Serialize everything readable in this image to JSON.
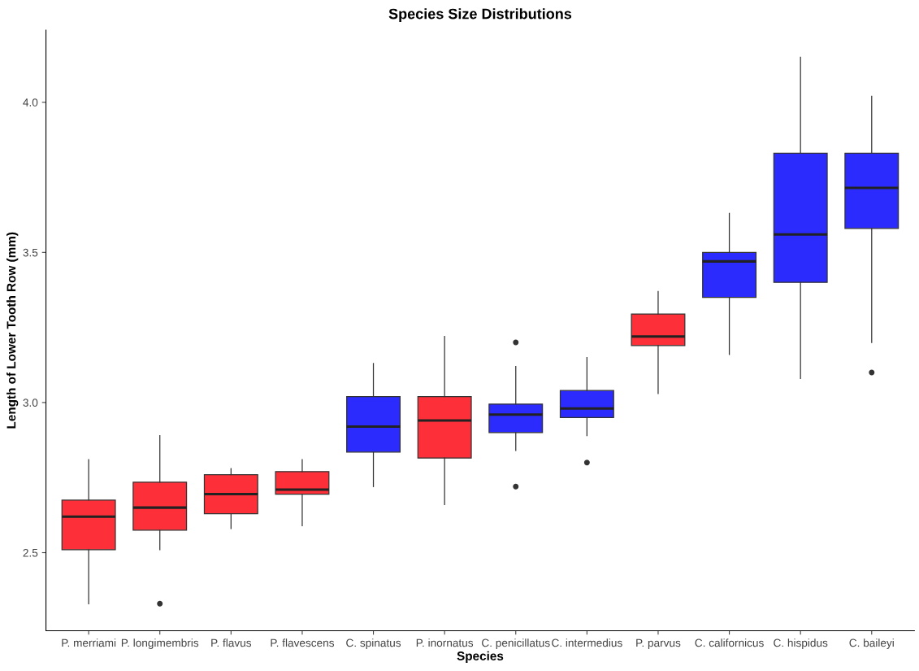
{
  "chart_data": {
    "type": "box",
    "title": "Species Size Distributions",
    "xlabel": "Species",
    "ylabel": "Length of Lower Tooth Row (mm)",
    "categories": [
      "P. merriami",
      "P. longimembris",
      "P. flavus",
      "P. flavescens",
      "C. spinatus",
      "P. inornatus",
      "C. penicillatus",
      "C. intermedius",
      "P. parvus",
      "C. californicus",
      "C. hispidus",
      "C. baileyi"
    ],
    "colors": [
      "#fd3039",
      "#fd3039",
      "#fd3039",
      "#fd3039",
      "#2b2bfd",
      "#fd3039",
      "#2b2bfd",
      "#2b2bfd",
      "#fd3039",
      "#2b2bfd",
      "#2b2bfd",
      "#2b2bfd"
    ],
    "boxes": [
      {
        "low": 2.33,
        "q1": 2.51,
        "median": 2.62,
        "q3": 2.675,
        "high": 2.81
      },
      {
        "low": 2.51,
        "q1": 2.575,
        "median": 2.65,
        "q3": 2.735,
        "high": 2.89,
        "outliers": [
          2.33
        ]
      },
      {
        "low": 2.58,
        "q1": 2.63,
        "median": 2.695,
        "q3": 2.76,
        "high": 2.78
      },
      {
        "low": 2.59,
        "q1": 2.695,
        "median": 2.71,
        "q3": 2.77,
        "high": 2.81
      },
      {
        "low": 2.72,
        "q1": 2.835,
        "median": 2.92,
        "q3": 3.02,
        "high": 3.13
      },
      {
        "low": 2.66,
        "q1": 2.815,
        "median": 2.94,
        "q3": 3.02,
        "high": 3.22
      },
      {
        "low": 2.84,
        "q1": 2.9,
        "median": 2.96,
        "q3": 2.995,
        "high": 3.12,
        "outliers": [
          3.2,
          2.72
        ]
      },
      {
        "low": 2.89,
        "q1": 2.95,
        "median": 2.98,
        "q3": 3.04,
        "high": 3.15,
        "outliers": [
          2.8
        ]
      },
      {
        "low": 3.03,
        "q1": 3.19,
        "median": 3.22,
        "q3": 3.295,
        "high": 3.37
      },
      {
        "low": 3.16,
        "q1": 3.35,
        "median": 3.47,
        "q3": 3.5,
        "high": 3.63
      },
      {
        "low": 3.08,
        "q1": 3.4,
        "median": 3.56,
        "q3": 3.83,
        "high": 4.15
      },
      {
        "low": 3.2,
        "q1": 3.58,
        "median": 3.715,
        "q3": 3.83,
        "high": 4.02,
        "outliers": [
          3.1
        ]
      }
    ],
    "ylim": [
      2.24,
      4.24
    ],
    "yticks": [
      {
        "value": 2.5,
        "label": "2.5"
      },
      {
        "value": 3.0,
        "label": "3.0"
      },
      {
        "value": 3.5,
        "label": "3.5"
      },
      {
        "value": 4.0,
        "label": "4.0"
      }
    ],
    "grid": false
  }
}
